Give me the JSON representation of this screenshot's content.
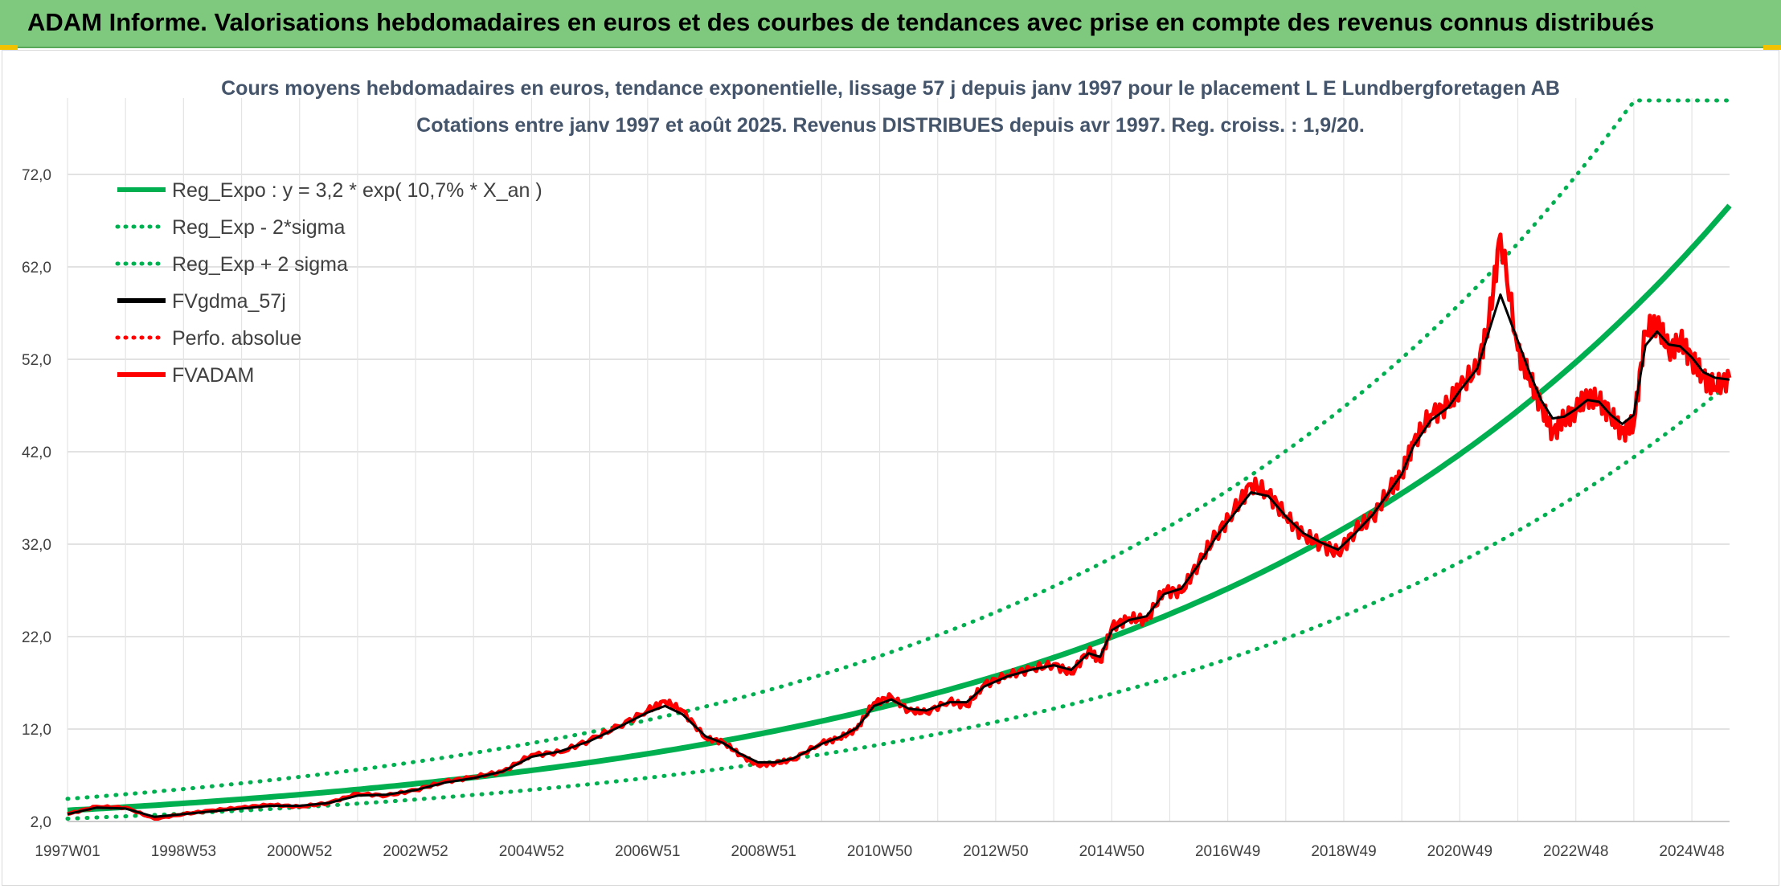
{
  "banner": {
    "title": "ADAM Informe. Valorisations hebdomadaires en euros et des courbes de tendances avec prise en compte des revenus connus distribués"
  },
  "colors": {
    "banner_bg": "#7fc97f",
    "reg_green": "#00b050",
    "series_black": "#000000",
    "series_red": "#ff0000",
    "subtitle": "#44546a"
  },
  "chart_data": {
    "type": "line",
    "title_lines": [
      "Cours moyens hebdomadaires en euros, tendance exponentielle, lissage 57 j depuis janv 1997 pour le placement L E Lundbergforetagen AB",
      "Cotations entre janv 1997 et août 2025. Revenus DISTRIBUES depuis avr 1997. Reg. croiss. : 1,9/20."
    ],
    "xlabel": "",
    "ylabel": "",
    "x_range": [
      1997.0,
      2025.65
    ],
    "ylim": [
      2,
      80
    ],
    "y_ticks": [
      2.0,
      12.0,
      22.0,
      32.0,
      42.0,
      52.0,
      62.0,
      72.0
    ],
    "y_tick_labels": [
      "2,0",
      "12,0",
      "22,0",
      "32,0",
      "42,0",
      "52,0",
      "62,0",
      "72,0"
    ],
    "x_ticks": [
      1997.0,
      1999.0,
      2001.0,
      2003.0,
      2005.0,
      2007.0,
      2009.0,
      2011.0,
      2013.0,
      2015.0,
      2017.0,
      2019.0,
      2021.0,
      2023.0,
      2025.0
    ],
    "x_tick_labels": [
      "1997W01",
      "1998W53",
      "2000W52",
      "2002W52",
      "2004W52",
      "2006W51",
      "2008W51",
      "2010W50",
      "2012W50",
      "2014W50",
      "2016W49",
      "2018W49",
      "2020W49",
      "2022W48",
      "2024W48"
    ],
    "grid": true,
    "legend_position": "top-left",
    "legend": [
      {
        "label": "Reg_Expo : y = 3,2 * exp( 10,7% *  X_an )",
        "color": "#00b050",
        "style": "solid"
      },
      {
        "label": "Reg_Exp - 2*sigma",
        "color": "#00b050",
        "style": "dotted"
      },
      {
        "label": "Reg_Exp + 2 sigma",
        "color": "#00b050",
        "style": "dotted"
      },
      {
        "label": "FVgdma_57j",
        "color": "#000000",
        "style": "solid"
      },
      {
        "label": "Perfo. absolue",
        "color": "#ff0000",
        "style": "dotted"
      },
      {
        "label": "FVADAM",
        "color": "#ff0000",
        "style": "solid"
      }
    ],
    "regression": {
      "a": 3.2,
      "rate": 0.107,
      "lower_factor": 0.72,
      "upper_factor": 1.39,
      "upper_cap": 80
    },
    "series": [
      {
        "name": "FVADAM",
        "x": [
          1997.0,
          1997.5,
          1998.0,
          1998.5,
          1999.0,
          1999.5,
          2000.0,
          2000.5,
          2001.0,
          2001.5,
          2002.0,
          2002.5,
          2003.0,
          2003.5,
          2004.0,
          2004.5,
          2005.0,
          2005.5,
          2006.0,
          2006.5,
          2007.0,
          2007.3,
          2007.6,
          2008.0,
          2008.3,
          2008.6,
          2008.9,
          2009.2,
          2009.5,
          2010.0,
          2010.3,
          2010.6,
          2010.9,
          2011.2,
          2011.5,
          2011.8,
          2012.2,
          2012.5,
          2012.8,
          2013.2,
          2013.6,
          2014.0,
          2014.3,
          2014.6,
          2014.8,
          2015.0,
          2015.3,
          2015.6,
          2015.9,
          2016.2,
          2016.5,
          2016.8,
          2017.1,
          2017.4,
          2017.7,
          2018.0,
          2018.3,
          2018.6,
          2018.9,
          2019.2,
          2019.5,
          2019.8,
          2020.0,
          2020.2,
          2020.5,
          2020.8,
          2021.0,
          2021.3,
          2021.5,
          2021.7,
          2022.0,
          2022.2,
          2022.4,
          2022.6,
          2022.8,
          2023.0,
          2023.2,
          2023.4,
          2023.6,
          2023.8,
          2024.0,
          2024.2,
          2024.4,
          2024.6,
          2024.8,
          2025.0,
          2025.2,
          2025.4,
          2025.65
        ],
        "values": [
          2.8,
          3.6,
          3.5,
          2.3,
          2.8,
          3.2,
          3.5,
          3.8,
          3.6,
          4.0,
          5.0,
          4.8,
          5.4,
          6.3,
          6.8,
          7.4,
          9.2,
          9.5,
          10.8,
          12.3,
          14.0,
          15.0,
          14.0,
          11.0,
          10.6,
          9.2,
          8.1,
          8.3,
          8.7,
          10.5,
          11.0,
          12.0,
          14.8,
          15.5,
          14.0,
          13.8,
          15.0,
          14.5,
          16.8,
          17.8,
          18.5,
          19.0,
          18.0,
          20.5,
          19.3,
          23.0,
          24.0,
          23.8,
          27.0,
          26.8,
          30.0,
          33.0,
          35.5,
          38.5,
          37.5,
          35.0,
          33.0,
          32.0,
          31.0,
          33.5,
          35.0,
          38.0,
          39.5,
          43.0,
          46.0,
          47.0,
          49.0,
          51.0,
          56.0,
          65.5,
          53.0,
          50.0,
          47.0,
          44.0,
          45.5,
          46.5,
          48.0,
          47.5,
          46.0,
          44.0,
          45.0,
          55.0,
          56.0,
          53.0,
          54.0,
          52.0,
          50.0,
          49.0,
          50.0
        ]
      },
      {
        "name": "FVgdma_57j",
        "x": [
          1997.0,
          1997.5,
          1998.0,
          1998.5,
          1999.0,
          1999.5,
          2000.0,
          2000.5,
          2001.0,
          2001.5,
          2002.0,
          2002.5,
          2003.0,
          2003.5,
          2004.0,
          2004.5,
          2005.0,
          2005.5,
          2006.0,
          2006.5,
          2007.0,
          2007.3,
          2007.6,
          2008.0,
          2008.3,
          2008.6,
          2008.9,
          2009.2,
          2009.5,
          2010.0,
          2010.3,
          2010.6,
          2010.9,
          2011.2,
          2011.5,
          2011.8,
          2012.2,
          2012.5,
          2012.8,
          2013.2,
          2013.6,
          2014.0,
          2014.3,
          2014.6,
          2014.8,
          2015.0,
          2015.3,
          2015.6,
          2015.9,
          2016.2,
          2016.5,
          2016.8,
          2017.1,
          2017.4,
          2017.7,
          2018.0,
          2018.3,
          2018.6,
          2018.9,
          2019.2,
          2019.5,
          2019.8,
          2020.0,
          2020.2,
          2020.5,
          2020.8,
          2021.0,
          2021.3,
          2021.5,
          2021.7,
          2022.0,
          2022.2,
          2022.4,
          2022.6,
          2022.8,
          2023.0,
          2023.2,
          2023.4,
          2023.6,
          2023.8,
          2024.0,
          2024.2,
          2024.4,
          2024.6,
          2024.8,
          2025.0,
          2025.2,
          2025.4,
          2025.65
        ],
        "values": [
          2.8,
          3.5,
          3.4,
          2.5,
          2.8,
          3.1,
          3.4,
          3.7,
          3.7,
          4.0,
          4.8,
          4.9,
          5.4,
          6.2,
          6.7,
          7.4,
          9.0,
          9.6,
          10.7,
          12.2,
          13.8,
          14.5,
          13.6,
          11.2,
          10.5,
          9.3,
          8.4,
          8.4,
          8.8,
          10.4,
          11.1,
          12.1,
          14.5,
          15.2,
          14.2,
          14.0,
          14.9,
          14.9,
          16.6,
          17.7,
          18.4,
          18.9,
          18.4,
          20.2,
          19.8,
          22.7,
          23.8,
          24.2,
          26.6,
          27.2,
          29.8,
          32.8,
          35.2,
          37.6,
          37.2,
          35.0,
          33.2,
          32.2,
          31.4,
          33.2,
          35.2,
          37.8,
          39.6,
          42.6,
          45.4,
          46.8,
          48.6,
          51.0,
          55.0,
          59.0,
          54.0,
          50.6,
          47.6,
          45.6,
          45.8,
          46.6,
          47.6,
          47.4,
          46.0,
          45.0,
          46.0,
          53.5,
          55.0,
          53.6,
          53.4,
          52.2,
          50.6,
          50.0,
          49.8
        ]
      }
    ]
  }
}
